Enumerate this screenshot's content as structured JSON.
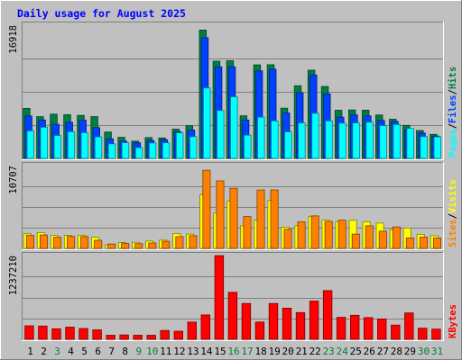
{
  "title": "Daily usage for August 2025",
  "chart_data": [
    {
      "type": "bar",
      "name": "hits-files-pages",
      "y_label": "16918",
      "ylim": [
        0,
        16918
      ],
      "grid": true,
      "legend": [
        {
          "label": "Pages",
          "color": "#00ffff"
        },
        {
          "label": "Files",
          "color": "#0040ff"
        },
        {
          "label": "Hits",
          "color": "#008040"
        }
      ],
      "categories": [
        "1",
        "2",
        "3",
        "4",
        "5",
        "6",
        "7",
        "8",
        "9",
        "10",
        "11",
        "12",
        "13",
        "14",
        "15",
        "16",
        "17",
        "18",
        "19",
        "20",
        "21",
        "22",
        "23",
        "24",
        "25",
        "26",
        "27",
        "28",
        "29",
        "30",
        "31"
      ],
      "series": [
        {
          "name": "Hits",
          "color": "#008040",
          "values": [
            6360,
            5300,
            5620,
            5540,
            5460,
            5300,
            3350,
            2670,
            2200,
            2640,
            2590,
            3710,
            4150,
            16300,
            12340,
            12400,
            5410,
            11880,
            11900,
            6380,
            9220,
            11200,
            9130,
            6120,
            6150,
            6130,
            5510,
            4970,
            4200,
            3540,
            3050
          ]
        },
        {
          "name": "Files",
          "color": "#0040ff",
          "values": [
            5380,
            4880,
            4330,
            4600,
            4860,
            3910,
            2490,
            2210,
            1990,
            2290,
            2380,
            3400,
            3600,
            15320,
            11640,
            11630,
            4860,
            11120,
            11340,
            5760,
            8330,
            10600,
            8200,
            5250,
            5520,
            5400,
            4820,
            4700,
            3660,
            3220,
            2830
          ]
        },
        {
          "name": "Pages",
          "color": "#00ffff",
          "values": [
            3500,
            3960,
            2920,
            3390,
            3270,
            2730,
            1850,
            1990,
            1360,
            1960,
            1980,
            3250,
            2750,
            8950,
            6090,
            7820,
            2950,
            5240,
            4760,
            3370,
            4500,
            5730,
            4770,
            4470,
            4500,
            4610,
            4160,
            4300,
            3810,
            2770,
            2730
          ]
        }
      ]
    },
    {
      "type": "bar",
      "name": "visits-sites",
      "y_label": "10707",
      "ylim": [
        0,
        10707
      ],
      "grid": true,
      "legend": [
        {
          "label": "Sites",
          "color": "#ff8000"
        },
        {
          "label": "Visits",
          "color": "#ffff00"
        }
      ],
      "categories": [
        "1",
        "2",
        "3",
        "4",
        "5",
        "6",
        "7",
        "8",
        "9",
        "10",
        "11",
        "12",
        "13",
        "14",
        "15",
        "16",
        "17",
        "18",
        "19",
        "20",
        "21",
        "22",
        "23",
        "24",
        "25",
        "26",
        "27",
        "28",
        "29",
        "30",
        "31"
      ],
      "series": [
        {
          "name": "Visits",
          "color": "#ffff00",
          "values": [
            1900,
            2020,
            1690,
            1690,
            1700,
            1460,
            440,
            740,
            780,
            940,
            1070,
            1900,
            1850,
            6950,
            4600,
            6140,
            2930,
            3650,
            6210,
            2740,
            2930,
            4160,
            3650,
            3460,
            3630,
            3440,
            3270,
            2420,
            2630,
            1800,
            1640
          ]
        },
        {
          "name": "Sites",
          "color": "#ff8000",
          "values": [
            1680,
            1730,
            1440,
            1550,
            1530,
            1050,
            570,
            630,
            610,
            700,
            920,
            1510,
            1640,
            10100,
            8730,
            7760,
            4120,
            7550,
            7570,
            2470,
            3430,
            4200,
            3490,
            3660,
            1850,
            2920,
            2220,
            2780,
            1350,
            1470,
            1350
          ]
        }
      ]
    },
    {
      "type": "bar",
      "name": "kbytes",
      "y_label": "1237210",
      "ylim": [
        0,
        1237210
      ],
      "grid": true,
      "legend": [
        {
          "label": "KBytes",
          "color": "#ff0000"
        }
      ],
      "categories": [
        "1",
        "2",
        "3",
        "4",
        "5",
        "6",
        "7",
        "8",
        "9",
        "10",
        "11",
        "12",
        "13",
        "14",
        "15",
        "16",
        "17",
        "18",
        "19",
        "20",
        "21",
        "22",
        "23",
        "24",
        "25",
        "26",
        "27",
        "28",
        "29",
        "30",
        "31"
      ],
      "series": [
        {
          "name": "KBytes",
          "color": "#ff0000",
          "values": [
            200000,
            195000,
            155000,
            180000,
            160000,
            140000,
            60000,
            65000,
            60000,
            60000,
            130000,
            120000,
            255000,
            360000,
            1237210,
            695000,
            530000,
            255000,
            530000,
            460000,
            395000,
            565000,
            720000,
            325000,
            355000,
            320000,
            300000,
            210000,
            390000,
            165000,
            150000
          ]
        }
      ]
    }
  ],
  "x_labels": [
    {
      "t": "1",
      "c": "#000000"
    },
    {
      "t": "2",
      "c": "#000000"
    },
    {
      "t": "3",
      "c": "#008040"
    },
    {
      "t": "4",
      "c": "#000000"
    },
    {
      "t": "5",
      "c": "#000000"
    },
    {
      "t": "6",
      "c": "#000000"
    },
    {
      "t": "7",
      "c": "#000000"
    },
    {
      "t": "8",
      "c": "#000000"
    },
    {
      "t": "9",
      "c": "#008040"
    },
    {
      "t": "10",
      "c": "#008040"
    },
    {
      "t": "11",
      "c": "#000000"
    },
    {
      "t": "12",
      "c": "#000000"
    },
    {
      "t": "13",
      "c": "#000000"
    },
    {
      "t": "14",
      "c": "#000000"
    },
    {
      "t": "15",
      "c": "#000000"
    },
    {
      "t": "16",
      "c": "#008040"
    },
    {
      "t": "17",
      "c": "#008040"
    },
    {
      "t": "18",
      "c": "#000000"
    },
    {
      "t": "19",
      "c": "#000000"
    },
    {
      "t": "20",
      "c": "#000000"
    },
    {
      "t": "21",
      "c": "#000000"
    },
    {
      "t": "22",
      "c": "#000000"
    },
    {
      "t": "23",
      "c": "#008040"
    },
    {
      "t": "24",
      "c": "#008040"
    },
    {
      "t": "25",
      "c": "#000000"
    },
    {
      "t": "26",
      "c": "#000000"
    },
    {
      "t": "27",
      "c": "#000000"
    },
    {
      "t": "28",
      "c": "#000000"
    },
    {
      "t": "29",
      "c": "#000000"
    },
    {
      "t": "30",
      "c": "#008040"
    },
    {
      "t": "31",
      "c": "#008040"
    }
  ]
}
